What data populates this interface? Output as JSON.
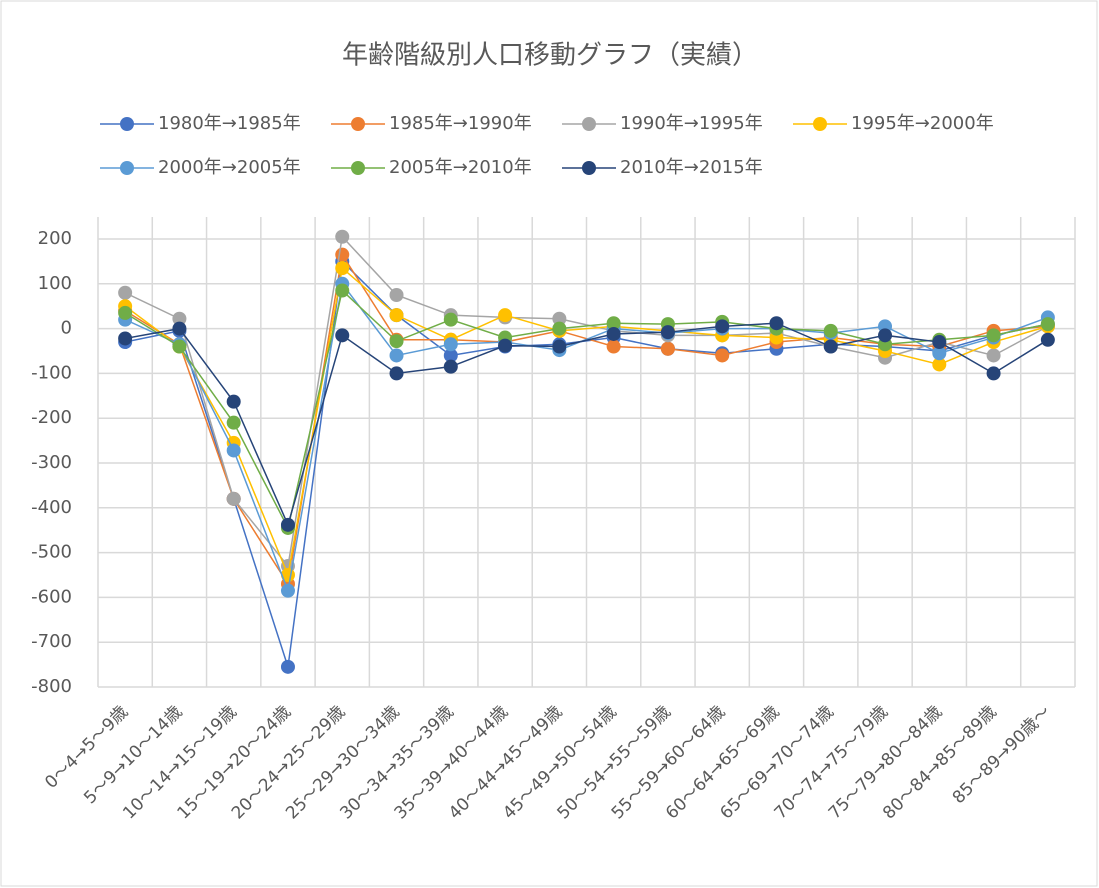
{
  "chart_data": {
    "type": "line",
    "title": "年齢階級別人口移動グラフ（実績）",
    "categories": [
      "0～4→5～9歳",
      "5～9→10～14歳",
      "10～14→15～19歳",
      "15～19→20～24歳",
      "20～24→25～29歳",
      "25～29→30～34歳",
      "30～34→35～39歳",
      "35～39→40～44歳",
      "40～44→45～49歳",
      "45～49→50～54歳",
      "50～54→55～59歳",
      "55～59→60～64歳",
      "60～64→65～69歳",
      "65～69→70～74歳",
      "70～74→75～79歳",
      "75～79→80～84歳",
      "80～84→85～89歳",
      "85～89→90歳～"
    ],
    "series": [
      {
        "name": "1980年→1985年",
        "color": "#4472c4",
        "values": [
          -30,
          -5,
          -380,
          -755,
          150,
          30,
          -60,
          -40,
          -35,
          -20,
          -45,
          -55,
          -45,
          -35,
          -40,
          -50,
          -15,
          10
        ]
      },
      {
        "name": "1985年→1990年",
        "color": "#ed7d31",
        "values": [
          40,
          -35,
          -380,
          -570,
          165,
          -25,
          -25,
          -30,
          -5,
          -40,
          -45,
          -60,
          -30,
          -20,
          -35,
          -40,
          -5,
          5
        ]
      },
      {
        "name": "1990年→1995年",
        "color": "#a5a5a5",
        "values": [
          80,
          22,
          -380,
          -530,
          205,
          75,
          30,
          25,
          22,
          -5,
          -15,
          -15,
          -10,
          -40,
          -65,
          -30,
          -60,
          5
        ]
      },
      {
        "name": "1995年→2000年",
        "color": "#ffc000",
        "values": [
          50,
          -40,
          -255,
          -550,
          135,
          30,
          -25,
          30,
          -5,
          5,
          -5,
          -15,
          -20,
          -25,
          -50,
          -80,
          -30,
          5
        ]
      },
      {
        "name": "2000年→2005年",
        "color": "#5b9bd5",
        "values": [
          20,
          -35,
          -272,
          -585,
          100,
          -60,
          -35,
          -30,
          -48,
          0,
          -10,
          0,
          0,
          -10,
          5,
          -55,
          -20,
          25
        ]
      },
      {
        "name": "2005年→2010年",
        "color": "#70ad47",
        "values": [
          35,
          -40,
          -210,
          -445,
          85,
          -28,
          20,
          -20,
          0,
          12,
          10,
          15,
          0,
          -5,
          -35,
          -25,
          -15,
          10
        ]
      },
      {
        "name": "2010年→2015年",
        "color": "#264478",
        "values": [
          -22,
          0,
          -163,
          -438,
          -15,
          -100,
          -85,
          -38,
          -40,
          -12,
          -8,
          5,
          12,
          -40,
          -15,
          -30,
          -100,
          -25
        ]
      }
    ],
    "ylim": [
      -800,
      200
    ],
    "yticks": [
      -800,
      -700,
      -600,
      -500,
      -400,
      -300,
      -200,
      -100,
      0,
      100,
      200
    ],
    "grid": true
  }
}
